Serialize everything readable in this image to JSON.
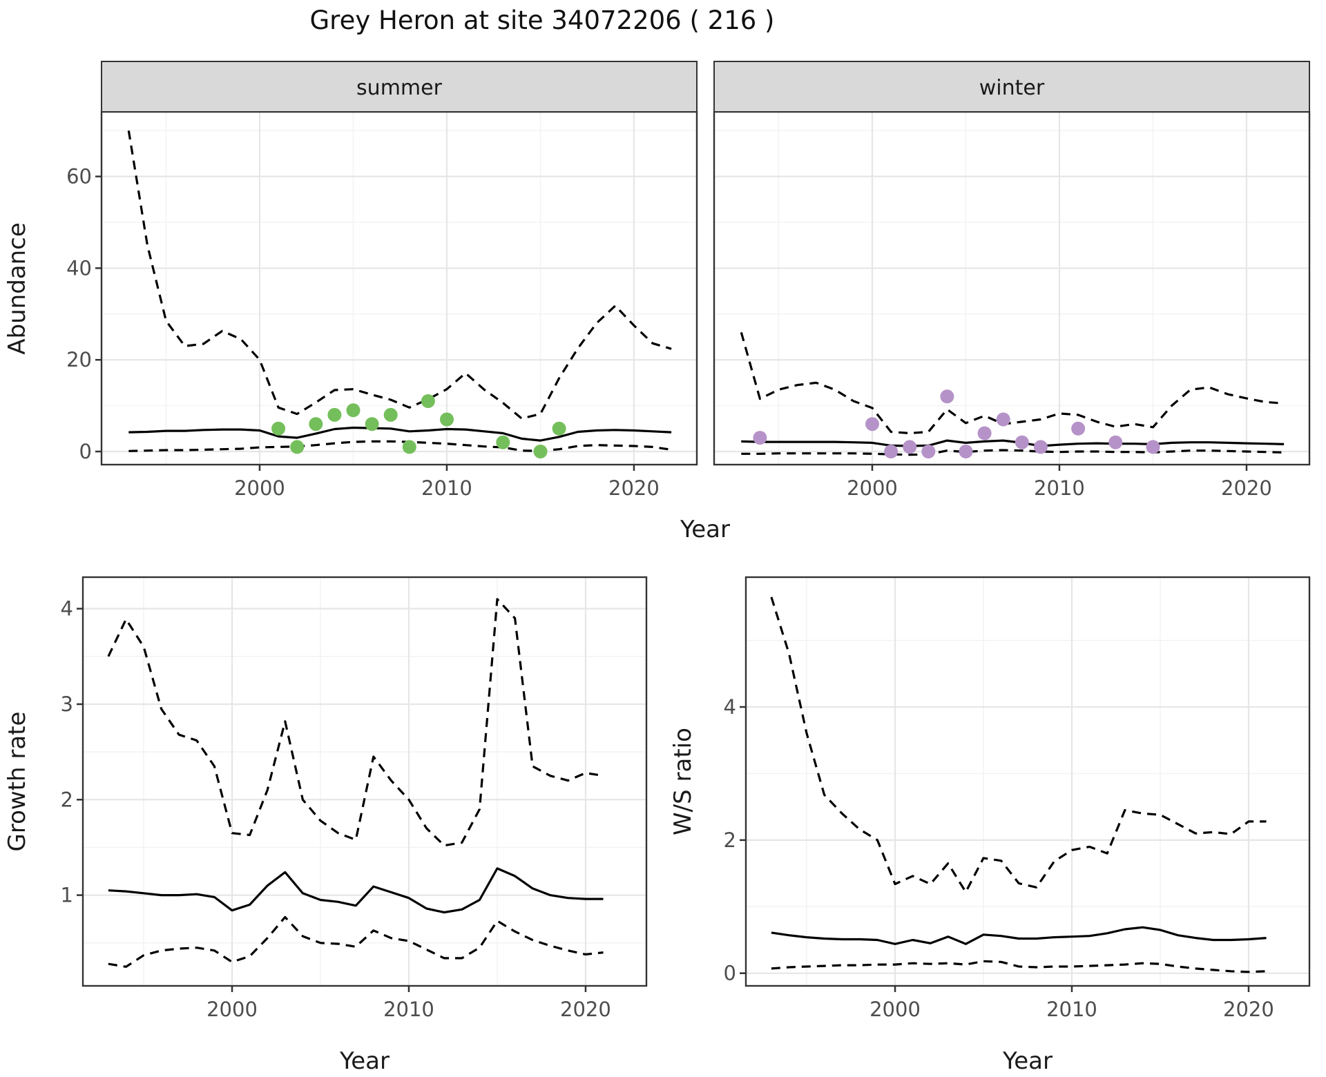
{
  "title": "Grey Heron at site 34072206 ( 216 )",
  "axis_labels": {
    "x": "Year",
    "y_abundance": "Abundance",
    "y_growth": "Growth rate",
    "y_ws": "W/S ratio"
  },
  "facets": {
    "summer": "summer",
    "winter": "winter"
  },
  "colors": {
    "summer_points": "#74BF5B",
    "winter_points": "#B592C8",
    "line": "#000000",
    "strip_bg": "#D9D9D9",
    "panel_border": "#333333",
    "grid_major": "#E6E6E6",
    "grid_minor": "#F2F2F2",
    "tick_text": "#4D4D4D"
  },
  "chart_data": [
    {
      "id": "abundance_summer",
      "type": "line",
      "facet": "summer",
      "xlabel": "Year",
      "ylabel": "Abundance",
      "x": [
        1993,
        1994,
        1995,
        1996,
        1997,
        1998,
        1999,
        2000,
        2001,
        2002,
        2003,
        2004,
        2005,
        2006,
        2007,
        2008,
        2009,
        2010,
        2011,
        2012,
        2013,
        2014,
        2015,
        2016,
        2017,
        2018,
        2019,
        2020,
        2021,
        2022
      ],
      "series": [
        {
          "name": "upper_95ci",
          "style": "dashed",
          "values": [
            70,
            45,
            28.5,
            23,
            23.5,
            26.3,
            24.5,
            20,
            9.6,
            8.2,
            10.7,
            13.4,
            13.6,
            12.4,
            11.3,
            9.6,
            11.4,
            13.6,
            17.1,
            13.5,
            10.6,
            7.2,
            8.2,
            16,
            22.5,
            28,
            31.8,
            27.5,
            23.6,
            22.4
          ]
        },
        {
          "name": "mean",
          "style": "solid",
          "values": [
            4.2,
            4.3,
            4.5,
            4.5,
            4.7,
            4.8,
            4.8,
            4.6,
            3.3,
            3.0,
            3.9,
            4.9,
            5.2,
            5.1,
            5.0,
            4.4,
            4.6,
            4.9,
            4.8,
            4.4,
            4.0,
            2.8,
            2.4,
            3.2,
            4.3,
            4.6,
            4.7,
            4.6,
            4.4,
            4.2
          ]
        },
        {
          "name": "lower_95ci",
          "style": "dashed",
          "values": [
            0.1,
            0.2,
            0.3,
            0.3,
            0.4,
            0.5,
            0.6,
            0.9,
            1.0,
            1.1,
            1.4,
            1.8,
            2.1,
            2.2,
            2.2,
            2.1,
            1.9,
            1.7,
            1.4,
            1.1,
            0.9,
            0.2,
            0.1,
            0.5,
            1.2,
            1.4,
            1.3,
            1.2,
            1.0,
            0.4
          ]
        }
      ],
      "points": {
        "name": "summer_observations",
        "color": "#74BF5B",
        "x": [
          2001,
          2002,
          2003,
          2004,
          2005,
          2006,
          2007,
          2008,
          2009,
          2010,
          2013,
          2015,
          2016
        ],
        "y": [
          5,
          1,
          6,
          8,
          9,
          6,
          8,
          1,
          11,
          7,
          2,
          0,
          5
        ]
      },
      "xlim": [
        1991.55,
        2023.36
      ],
      "ylim": [
        -2.86,
        74.1
      ],
      "xticks": [
        2000,
        2010,
        2020
      ],
      "yticks": [
        0,
        20,
        40,
        60
      ],
      "show_ytick_labels": true,
      "grid": true
    },
    {
      "id": "abundance_winter",
      "type": "line",
      "facet": "winter",
      "xlabel": "Year",
      "ylabel": "Abundance",
      "x": [
        1993,
        1994,
        1995,
        1996,
        1997,
        1998,
        1999,
        2000,
        2001,
        2002,
        2003,
        2004,
        2005,
        2006,
        2007,
        2008,
        2009,
        2010,
        2011,
        2012,
        2013,
        2014,
        2015,
        2016,
        2017,
        2018,
        2019,
        2020,
        2021,
        2022
      ],
      "series": [
        {
          "name": "upper_95ci",
          "style": "dashed",
          "values": [
            26,
            11.5,
            13.5,
            14.5,
            15,
            13.5,
            11,
            9.5,
            4.3,
            4,
            4.3,
            9.2,
            6.2,
            7.8,
            6,
            6.5,
            7,
            8.3,
            8,
            6.5,
            5.4,
            6,
            5.3,
            10,
            13.5,
            14,
            12.5,
            11.6,
            10.8,
            10.5
          ]
        },
        {
          "name": "mean",
          "style": "solid",
          "values": [
            2.2,
            2.1,
            2.1,
            2.1,
            2.1,
            2.1,
            2.0,
            1.9,
            1.3,
            1.2,
            1.3,
            2.4,
            1.9,
            2.2,
            2.4,
            1.9,
            1.2,
            1.5,
            1.7,
            1.8,
            1.7,
            1.7,
            1.6,
            1.9,
            2.0,
            2.0,
            1.9,
            1.8,
            1.7,
            1.6
          ]
        },
        {
          "name": "lower_95ci",
          "style": "dashed",
          "values": [
            -0.5,
            -0.5,
            -0.4,
            -0.4,
            -0.4,
            -0.4,
            -0.4,
            -0.5,
            -0.6,
            -0.7,
            -0.6,
            0.2,
            -0.1,
            0.2,
            0.3,
            0.2,
            0,
            -0.1,
            0,
            0,
            -0.1,
            -0.1,
            -0.2,
            0,
            0.2,
            0.2,
            0.1,
            0,
            -0.1,
            -0.2
          ]
        }
      ],
      "points": {
        "name": "winter_observations",
        "color": "#B592C8",
        "x": [
          1994,
          2000,
          2001,
          2002,
          2003,
          2004,
          2005,
          2006,
          2007,
          2008,
          2009,
          2011,
          2013,
          2015
        ],
        "y": [
          3,
          6,
          0,
          1,
          0,
          12,
          0,
          4,
          7,
          2,
          1,
          5,
          2,
          1
        ]
      },
      "xlim": [
        1991.55,
        2023.36
      ],
      "ylim": [
        -2.86,
        74.1
      ],
      "xticks": [
        2000,
        2010,
        2020
      ],
      "yticks": [
        0,
        20,
        40,
        60
      ],
      "show_ytick_labels": false,
      "grid": true
    },
    {
      "id": "growth_rate",
      "type": "line",
      "facet": null,
      "xlabel": "Year",
      "ylabel": "Growth rate",
      "x": [
        1993,
        1994,
        1995,
        1996,
        1997,
        1998,
        1999,
        2000,
        2001,
        2002,
        2003,
        2004,
        2005,
        2006,
        2007,
        2008,
        2009,
        2010,
        2011,
        2012,
        2013,
        2014,
        2015,
        2016,
        2017,
        2018,
        2019,
        2020,
        2021
      ],
      "series": [
        {
          "name": "upper_95ci",
          "style": "dashed",
          "values": [
            3.5,
            3.89,
            3.6,
            2.95,
            2.68,
            2.62,
            2.35,
            1.65,
            1.63,
            2.1,
            2.82,
            2.0,
            1.78,
            1.65,
            1.58,
            2.45,
            2.2,
            2.0,
            1.7,
            1.52,
            1.55,
            1.9,
            4.1,
            3.9,
            2.35,
            2.25,
            2.2,
            2.28,
            2.25
          ]
        },
        {
          "name": "mean",
          "style": "solid",
          "values": [
            1.05,
            1.04,
            1.02,
            1.0,
            1.0,
            1.01,
            0.98,
            0.84,
            0.9,
            1.1,
            1.24,
            1.02,
            0.95,
            0.93,
            0.89,
            1.09,
            1.03,
            0.97,
            0.86,
            0.82,
            0.85,
            0.95,
            1.28,
            1.2,
            1.07,
            1.0,
            0.97,
            0.96,
            0.96
          ]
        },
        {
          "name": "lower_95ci",
          "style": "dashed",
          "values": [
            0.28,
            0.25,
            0.37,
            0.42,
            0.44,
            0.45,
            0.42,
            0.3,
            0.36,
            0.55,
            0.77,
            0.57,
            0.5,
            0.49,
            0.46,
            0.63,
            0.55,
            0.52,
            0.43,
            0.34,
            0.34,
            0.45,
            0.73,
            0.62,
            0.53,
            0.47,
            0.42,
            0.38,
            0.4
          ]
        }
      ],
      "points": null,
      "xlim": [
        1991.56,
        2023.44
      ],
      "ylim": [
        0.05,
        4.33
      ],
      "xticks": [
        2000,
        2010,
        2020
      ],
      "yticks": [
        1,
        2,
        3,
        4
      ],
      "show_ytick_labels": true,
      "grid": true
    },
    {
      "id": "ws_ratio",
      "type": "line",
      "facet": null,
      "xlabel": "Year",
      "ylabel": "W/S ratio",
      "x": [
        1993,
        1994,
        1995,
        1996,
        1997,
        1998,
        1999,
        2000,
        2001,
        2002,
        2003,
        2004,
        2005,
        2006,
        2007,
        2008,
        2009,
        2010,
        2011,
        2012,
        2013,
        2014,
        2015,
        2016,
        2017,
        2018,
        2019,
        2020,
        2021
      ],
      "series": [
        {
          "name": "upper_95ci",
          "style": "dashed",
          "values": [
            5.65,
            4.8,
            3.6,
            2.68,
            2.4,
            2.16,
            2.0,
            1.34,
            1.46,
            1.34,
            1.65,
            1.22,
            1.73,
            1.69,
            1.35,
            1.29,
            1.68,
            1.85,
            1.9,
            1.8,
            2.45,
            2.4,
            2.38,
            2.24,
            2.1,
            2.12,
            2.09,
            2.28,
            2.28
          ]
        },
        {
          "name": "mean",
          "style": "solid",
          "values": [
            0.61,
            0.57,
            0.54,
            0.52,
            0.51,
            0.51,
            0.5,
            0.44,
            0.5,
            0.45,
            0.55,
            0.44,
            0.58,
            0.56,
            0.52,
            0.52,
            0.54,
            0.55,
            0.56,
            0.6,
            0.66,
            0.69,
            0.65,
            0.57,
            0.53,
            0.5,
            0.5,
            0.51,
            0.53
          ]
        },
        {
          "name": "lower_95ci",
          "style": "dashed",
          "values": [
            0.07,
            0.09,
            0.1,
            0.11,
            0.12,
            0.12,
            0.13,
            0.13,
            0.15,
            0.14,
            0.15,
            0.13,
            0.18,
            0.17,
            0.1,
            0.09,
            0.1,
            0.1,
            0.11,
            0.12,
            0.13,
            0.15,
            0.14,
            0.1,
            0.07,
            0.05,
            0.03,
            0.02,
            0.03
          ]
        }
      ],
      "points": null,
      "xlim": [
        1991.56,
        2023.44
      ],
      "ylim": [
        -0.19,
        5.95
      ],
      "xticks": [
        2000,
        2010,
        2020
      ],
      "yticks": [
        0,
        2,
        4
      ],
      "show_ytick_labels": true,
      "grid": true
    }
  ]
}
